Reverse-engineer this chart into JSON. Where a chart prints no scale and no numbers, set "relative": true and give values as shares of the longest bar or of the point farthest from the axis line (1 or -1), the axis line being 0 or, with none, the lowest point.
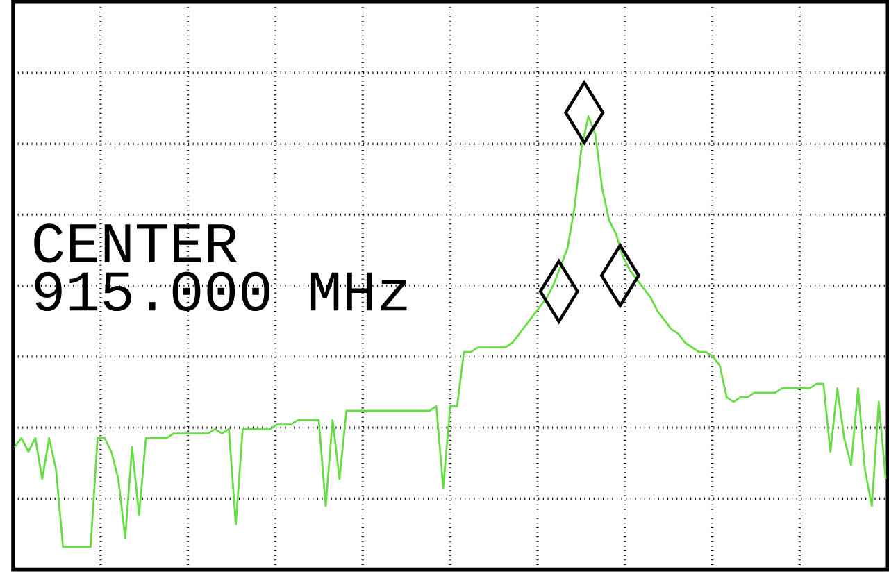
{
  "chart_data": {
    "type": "line",
    "relative": true,
    "grid": true,
    "annotations": [
      "CENTER",
      "915.000 MHz"
    ],
    "categories": [
      null,
      null,
      null,
      null,
      null,
      null,
      null,
      null,
      null,
      null,
      null,
      null,
      null,
      null,
      null,
      null,
      null,
      null,
      null,
      null,
      null,
      null,
      null,
      null,
      null,
      null,
      null,
      null,
      null,
      null,
      null,
      null,
      null,
      null,
      null,
      null,
      null,
      null,
      null,
      null,
      null,
      null,
      null,
      null,
      null,
      null,
      null,
      null,
      null,
      null,
      null,
      null,
      null,
      null,
      null,
      null,
      null,
      null,
      null,
      null,
      null,
      null,
      null,
      null,
      null,
      null,
      null,
      null,
      null,
      null,
      null,
      null,
      null,
      null,
      null,
      null,
      null,
      null,
      null,
      null,
      null,
      null,
      null,
      null,
      null,
      null,
      null,
      null,
      null,
      null,
      null,
      null,
      null,
      null,
      null,
      null,
      null,
      null,
      null,
      null,
      null,
      null,
      null,
      null,
      null,
      null,
      null,
      null,
      null,
      null,
      null,
      null,
      null,
      null,
      null,
      null,
      null,
      null,
      null,
      null,
      null,
      null,
      null,
      null,
      null,
      null,
      null
    ],
    "series": [
      {
        "color": "#66dd44",
        "values": [
          0.27,
          0.29,
          0.26,
          0.29,
          0.2,
          0.29,
          0.22,
          0.05,
          0.05,
          0.05,
          0.05,
          0.05,
          0.29,
          0.29,
          0.26,
          0.2,
          0.07,
          0.27,
          0.12,
          0.29,
          0.29,
          0.29,
          0.29,
          0.3,
          0.3,
          0.3,
          0.3,
          0.3,
          0.3,
          0.31,
          0.3,
          0.31,
          0.1,
          0.31,
          0.31,
          0.31,
          0.31,
          0.31,
          0.32,
          0.32,
          0.32,
          0.33,
          0.33,
          0.33,
          0.33,
          0.14,
          0.33,
          0.2,
          0.35,
          0.35,
          0.35,
          0.35,
          0.35,
          0.35,
          0.35,
          0.35,
          0.35,
          0.35,
          0.35,
          0.35,
          0.35,
          0.36,
          0.18,
          0.36,
          0.36,
          0.48,
          0.48,
          0.49,
          0.49,
          0.49,
          0.49,
          0.49,
          0.5,
          0.52,
          0.54,
          0.56,
          0.58,
          0.6,
          0.63,
          0.67,
          0.71,
          0.8,
          0.93,
          1,
          0.96,
          0.84,
          0.77,
          0.74,
          0.69,
          0.66,
          0.64,
          0.62,
          0.6,
          0.57,
          0.55,
          0.53,
          0.52,
          0.5,
          0.49,
          0.48,
          0.48,
          0.47,
          0.45,
          0.38,
          0.37,
          0.38,
          0.38,
          0.39,
          0.39,
          0.39,
          0.39,
          0.4,
          0.4,
          0.4,
          0.4,
          0.4,
          0.41,
          0.41,
          0.26,
          0.4,
          0.29,
          0.23,
          0.4,
          0.22,
          0.14,
          0.37,
          0.2
        ]
      }
    ]
  }
}
